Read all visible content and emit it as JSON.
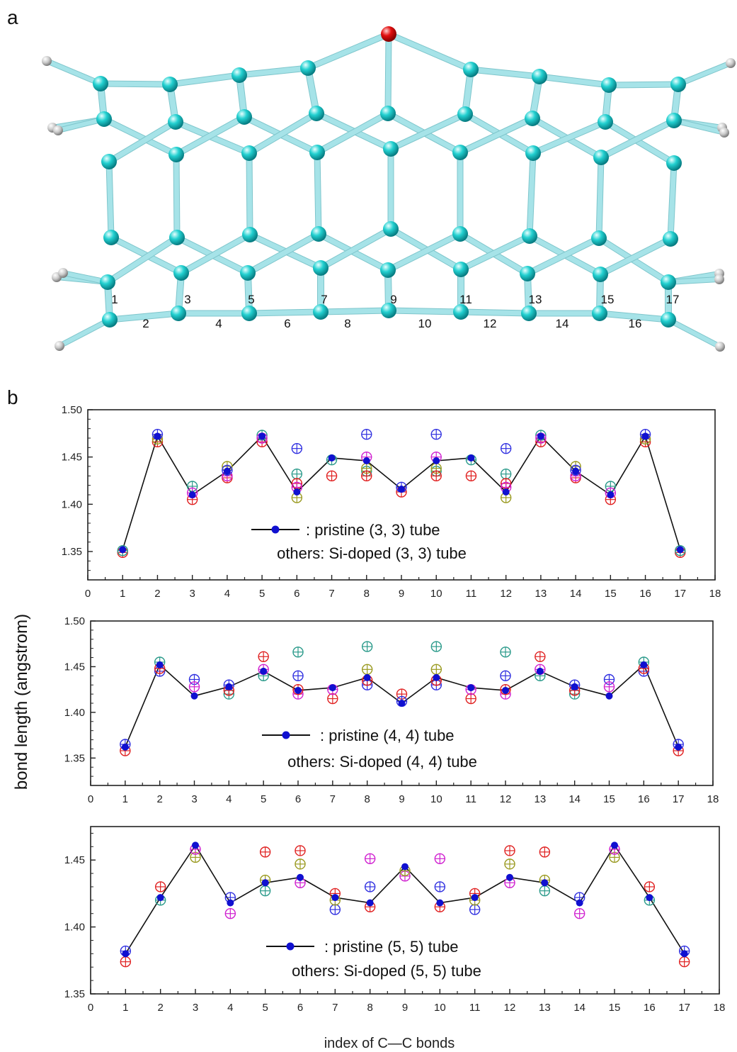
{
  "panel_a": {
    "label": "a",
    "colors": {
      "carbon": "#19c7c7",
      "bond": "#a6e3e8",
      "dopant": "#e01010",
      "hydrogen": "#c4c4c4"
    },
    "bond_labels": [
      "1",
      "2",
      "3",
      "4",
      "5",
      "6",
      "7",
      "8",
      "9",
      "10",
      "11",
      "12",
      "13",
      "14",
      "15",
      "16",
      "17"
    ]
  },
  "panel_b": {
    "label": "b",
    "ylabel": "bond length (angstrom)",
    "xlabel": "index of C—C bonds",
    "pristine_color": "#1010d0",
    "doped_colors": [
      "#e02020",
      "#3030e0",
      "#d020d0",
      "#2a9a8a",
      "#9a9a20",
      "#c04040"
    ]
  },
  "chart_data": [
    {
      "type": "line",
      "legend": {
        "pristine": ": pristine (3, 3) tube",
        "others": "others: Si-doped (3, 3) tube"
      },
      "xlim": [
        0,
        18
      ],
      "xticks": [
        "0",
        "1",
        "2",
        "3",
        "4",
        "5",
        "6",
        "7",
        "8",
        "9",
        "10",
        "11",
        "12",
        "13",
        "14",
        "15",
        "16",
        "17",
        "18"
      ],
      "ylim": [
        1.32,
        1.5
      ],
      "yticks": [
        "1.35",
        "1.40",
        "1.45",
        "1.50"
      ],
      "pristine": {
        "x": [
          1,
          2,
          3,
          4,
          5,
          6,
          7,
          8,
          9,
          10,
          11,
          12,
          13,
          14,
          15,
          16,
          17
        ],
        "y": [
          1.352,
          1.472,
          1.41,
          1.435,
          1.472,
          1.413,
          1.449,
          1.446,
          1.416,
          1.446,
          1.449,
          1.413,
          1.472,
          1.435,
          1.41,
          1.472,
          1.352
        ]
      },
      "doped_points": [
        [
          1,
          1.349,
          0
        ],
        [
          1,
          1.351,
          3
        ],
        [
          2,
          1.466,
          0
        ],
        [
          2,
          1.469,
          4
        ],
        [
          2,
          1.474,
          1
        ],
        [
          3,
          1.405,
          0
        ],
        [
          3,
          1.419,
          3
        ],
        [
          3,
          1.412,
          2
        ],
        [
          4,
          1.428,
          0
        ],
        [
          4,
          1.44,
          4
        ],
        [
          4,
          1.43,
          2
        ],
        [
          4,
          1.436,
          1
        ],
        [
          5,
          1.466,
          0
        ],
        [
          5,
          1.473,
          3
        ],
        [
          5,
          1.47,
          2
        ],
        [
          6,
          1.459,
          1
        ],
        [
          6,
          1.432,
          3
        ],
        [
          6,
          1.422,
          0
        ],
        [
          6,
          1.418,
          2
        ],
        [
          6,
          1.407,
          4
        ],
        [
          7,
          1.43,
          0
        ],
        [
          7,
          1.447,
          3
        ],
        [
          8,
          1.474,
          1
        ],
        [
          8,
          1.45,
          2
        ],
        [
          8,
          1.435,
          3
        ],
        [
          8,
          1.438,
          4
        ],
        [
          8,
          1.43,
          0
        ],
        [
          9,
          1.413,
          0
        ],
        [
          9,
          1.418,
          1
        ],
        [
          10,
          1.474,
          1
        ],
        [
          10,
          1.45,
          2
        ],
        [
          10,
          1.435,
          3
        ],
        [
          10,
          1.438,
          4
        ],
        [
          10,
          1.43,
          0
        ],
        [
          11,
          1.43,
          0
        ],
        [
          11,
          1.447,
          3
        ],
        [
          12,
          1.459,
          1
        ],
        [
          12,
          1.432,
          3
        ],
        [
          12,
          1.422,
          0
        ],
        [
          12,
          1.418,
          2
        ],
        [
          12,
          1.407,
          4
        ],
        [
          13,
          1.466,
          0
        ],
        [
          13,
          1.473,
          3
        ],
        [
          13,
          1.47,
          2
        ],
        [
          14,
          1.428,
          0
        ],
        [
          14,
          1.44,
          4
        ],
        [
          14,
          1.43,
          2
        ],
        [
          14,
          1.436,
          1
        ],
        [
          15,
          1.405,
          0
        ],
        [
          15,
          1.419,
          3
        ],
        [
          15,
          1.412,
          2
        ],
        [
          16,
          1.466,
          0
        ],
        [
          16,
          1.469,
          4
        ],
        [
          16,
          1.474,
          1
        ],
        [
          17,
          1.349,
          0
        ],
        [
          17,
          1.351,
          3
        ]
      ]
    },
    {
      "type": "line",
      "legend": {
        "pristine": ": pristine (4, 4) tube",
        "others": "others: Si-doped (4, 4) tube"
      },
      "xlim": [
        0,
        18
      ],
      "xticks": [
        "0",
        "1",
        "2",
        "3",
        "4",
        "5",
        "6",
        "7",
        "8",
        "9",
        "10",
        "11",
        "12",
        "13",
        "14",
        "15",
        "16",
        "17",
        "18"
      ],
      "ylim": [
        1.32,
        1.5
      ],
      "yticks": [
        "1.35",
        "1.40",
        "1.45",
        "1.50"
      ],
      "pristine": {
        "x": [
          1,
          2,
          3,
          4,
          5,
          6,
          7,
          8,
          9,
          10,
          11,
          12,
          13,
          14,
          15,
          16,
          17
        ],
        "y": [
          1.362,
          1.452,
          1.418,
          1.428,
          1.445,
          1.424,
          1.427,
          1.438,
          1.41,
          1.438,
          1.427,
          1.424,
          1.445,
          1.428,
          1.418,
          1.452,
          1.362
        ]
      },
      "doped_points": [
        [
          1,
          1.358,
          0
        ],
        [
          1,
          1.365,
          1
        ],
        [
          2,
          1.445,
          1
        ],
        [
          2,
          1.455,
          3
        ],
        [
          2,
          1.448,
          0
        ],
        [
          3,
          1.436,
          1
        ],
        [
          3,
          1.428,
          2
        ],
        [
          4,
          1.42,
          3
        ],
        [
          4,
          1.43,
          1
        ],
        [
          4,
          1.424,
          0
        ],
        [
          5,
          1.461,
          0
        ],
        [
          5,
          1.44,
          3
        ],
        [
          5,
          1.447,
          2
        ],
        [
          6,
          1.466,
          3
        ],
        [
          6,
          1.44,
          1
        ],
        [
          6,
          1.42,
          2
        ],
        [
          6,
          1.425,
          0
        ],
        [
          7,
          1.415,
          0
        ],
        [
          7,
          1.425,
          2
        ],
        [
          8,
          1.472,
          3
        ],
        [
          8,
          1.447,
          4
        ],
        [
          8,
          1.43,
          1
        ],
        [
          8,
          1.435,
          0
        ],
        [
          9,
          1.42,
          0
        ],
        [
          9,
          1.412,
          1
        ],
        [
          10,
          1.472,
          3
        ],
        [
          10,
          1.447,
          4
        ],
        [
          10,
          1.43,
          1
        ],
        [
          10,
          1.435,
          0
        ],
        [
          11,
          1.415,
          0
        ],
        [
          11,
          1.425,
          2
        ],
        [
          12,
          1.466,
          3
        ],
        [
          12,
          1.44,
          1
        ],
        [
          12,
          1.42,
          2
        ],
        [
          12,
          1.425,
          0
        ],
        [
          13,
          1.461,
          0
        ],
        [
          13,
          1.44,
          3
        ],
        [
          13,
          1.447,
          2
        ],
        [
          14,
          1.42,
          3
        ],
        [
          14,
          1.43,
          1
        ],
        [
          14,
          1.424,
          0
        ],
        [
          15,
          1.436,
          1
        ],
        [
          15,
          1.428,
          2
        ],
        [
          16,
          1.445,
          1
        ],
        [
          16,
          1.455,
          3
        ],
        [
          16,
          1.448,
          0
        ],
        [
          17,
          1.358,
          0
        ],
        [
          17,
          1.365,
          1
        ]
      ]
    },
    {
      "type": "line",
      "legend": {
        "pristine": ": pristine (5, 5) tube",
        "others": "others: Si-doped (5, 5) tube"
      },
      "xlim": [
        0,
        18
      ],
      "xticks": [
        "0",
        "1",
        "2",
        "3",
        "4",
        "5",
        "6",
        "7",
        "8",
        "9",
        "10",
        "11",
        "12",
        "13",
        "14",
        "15",
        "16",
        "17",
        "18"
      ],
      "ylim": [
        1.35,
        1.475
      ],
      "yticks": [
        "1.35",
        "1.40",
        "1.45"
      ],
      "pristine": {
        "x": [
          1,
          2,
          3,
          4,
          5,
          6,
          7,
          8,
          9,
          10,
          11,
          12,
          13,
          14,
          15,
          16,
          17
        ],
        "y": [
          1.38,
          1.422,
          1.461,
          1.418,
          1.433,
          1.437,
          1.422,
          1.418,
          1.445,
          1.418,
          1.422,
          1.437,
          1.433,
          1.418,
          1.461,
          1.422,
          1.38
        ]
      },
      "doped_points": [
        [
          1,
          1.374,
          0
        ],
        [
          1,
          1.382,
          1
        ],
        [
          2,
          1.43,
          0
        ],
        [
          2,
          1.42,
          3
        ],
        [
          3,
          1.452,
          4
        ],
        [
          3,
          1.458,
          2
        ],
        [
          4,
          1.41,
          2
        ],
        [
          4,
          1.422,
          1
        ],
        [
          5,
          1.456,
          0
        ],
        [
          5,
          1.427,
          3
        ],
        [
          5,
          1.435,
          4
        ],
        [
          6,
          1.457,
          0
        ],
        [
          6,
          1.447,
          4
        ],
        [
          6,
          1.433,
          2
        ],
        [
          7,
          1.413,
          1
        ],
        [
          7,
          1.425,
          0
        ],
        [
          7,
          1.42,
          4
        ],
        [
          8,
          1.451,
          2
        ],
        [
          8,
          1.43,
          1
        ],
        [
          8,
          1.415,
          0
        ],
        [
          9,
          1.438,
          2
        ],
        [
          9,
          1.442,
          4
        ],
        [
          10,
          1.451,
          2
        ],
        [
          10,
          1.43,
          1
        ],
        [
          10,
          1.415,
          0
        ],
        [
          11,
          1.413,
          1
        ],
        [
          11,
          1.425,
          0
        ],
        [
          11,
          1.42,
          4
        ],
        [
          12,
          1.457,
          0
        ],
        [
          12,
          1.447,
          4
        ],
        [
          12,
          1.433,
          2
        ],
        [
          13,
          1.456,
          0
        ],
        [
          13,
          1.427,
          3
        ],
        [
          13,
          1.435,
          4
        ],
        [
          14,
          1.41,
          2
        ],
        [
          14,
          1.422,
          1
        ],
        [
          15,
          1.452,
          4
        ],
        [
          15,
          1.458,
          2
        ],
        [
          16,
          1.43,
          0
        ],
        [
          16,
          1.42,
          3
        ],
        [
          17,
          1.374,
          0
        ],
        [
          17,
          1.382,
          1
        ]
      ]
    }
  ]
}
